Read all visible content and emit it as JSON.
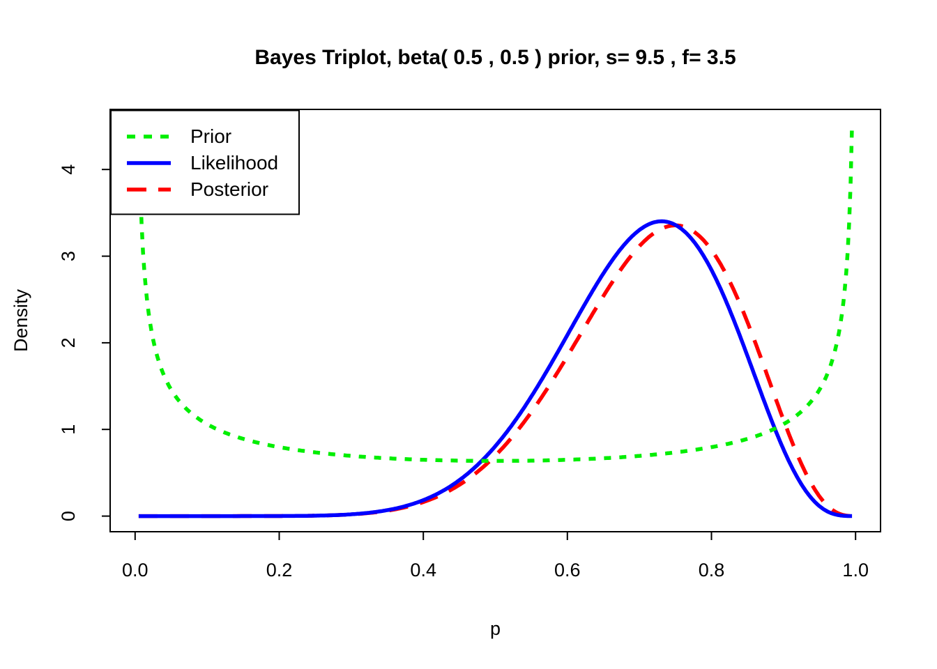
{
  "chart": {
    "title": "Bayes Triplot, beta( 0.5 , 0.5 ) prior, s= 9.5 , f= 3.5",
    "xlabel": "p",
    "ylabel": "Density"
  },
  "chart_data": {
    "type": "line",
    "title": "Bayes Triplot, beta( 0.5 , 0.5 ) prior, s= 9.5 , f= 3.5",
    "xlabel": "p",
    "ylabel": "Density",
    "xlim": [
      0.005,
      0.995
    ],
    "ylim": [
      0,
      4.513
    ],
    "axis_expansion": 0.04,
    "grid": false,
    "background": "#ffffff",
    "box_color": "#000000",
    "parameters": {
      "prior_a": 0.5,
      "prior_b": 0.5,
      "s": 9.5,
      "f": 3.5
    },
    "x_ticks": [
      {
        "value": 0.0,
        "label": "0.0"
      },
      {
        "value": 0.2,
        "label": "0.2"
      },
      {
        "value": 0.4,
        "label": "0.4"
      },
      {
        "value": 0.6,
        "label": "0.6"
      },
      {
        "value": 0.8,
        "label": "0.8"
      },
      {
        "value": 1.0,
        "label": "1.0"
      }
    ],
    "y_ticks": [
      {
        "value": 0,
        "label": "0"
      },
      {
        "value": 1,
        "label": "1"
      },
      {
        "value": 2,
        "label": "2"
      },
      {
        "value": 3,
        "label": "3"
      },
      {
        "value": 4,
        "label": "4"
      }
    ],
    "legend": {
      "position": "topleft",
      "entries": [
        "Prior",
        "Likelihood",
        "Posterior"
      ]
    },
    "series": [
      {
        "key": "prior",
        "label": "Prior",
        "color": "#00EE00",
        "line_style": "dotted",
        "line_width": 3,
        "distribution": "beta",
        "shape1": 0.5,
        "shape2": 0.5,
        "shape_note": "U-shaped: 4.513 at p=0.005 and p=0.995, minimum 0.637 at p=0.5"
      },
      {
        "key": "likelihood",
        "label": "Likelihood",
        "color": "#0000FF",
        "line_style": "solid",
        "line_width": 3,
        "distribution": "beta",
        "shape1": 10.5,
        "shape2": 4.5,
        "peak": {
          "p": 0.731,
          "density": 3.401
        }
      },
      {
        "key": "posterior",
        "label": "Posterior",
        "color": "#FF0000",
        "line_style": "dashed",
        "line_width": 3,
        "distribution": "beta",
        "shape1": 10,
        "shape2": 4,
        "peak": {
          "p": 0.75,
          "density": 3.355
        }
      }
    ],
    "samples": {
      "p": [
        0.005,
        0.05,
        0.1,
        0.2,
        0.3,
        0.4,
        0.5,
        0.6,
        0.65,
        0.7,
        0.73,
        0.75,
        0.8,
        0.85,
        0.9,
        0.95,
        0.995
      ],
      "prior": [
        4.513,
        1.461,
        1.061,
        0.796,
        0.695,
        0.65,
        0.637,
        0.65,
        0.667,
        0.695,
        0.717,
        0.735,
        0.796,
        0.891,
        1.061,
        1.461,
        4.513
      ],
      "likelihood": [
        0.0,
        0.0,
        0.0,
        0.001,
        0.02,
        0.183,
        0.807,
        2.092,
        2.805,
        3.297,
        3.401,
        3.363,
        2.841,
        1.848,
        0.77,
        0.114,
        0.0
      ],
      "posterior": [
        0.0,
        0.0,
        0.0,
        0.001,
        0.019,
        0.162,
        0.698,
        1.845,
        2.54,
        3.116,
        3.316,
        3.355,
        3.071,
        2.236,
        1.108,
        0.225,
        0.0
      ]
    }
  }
}
